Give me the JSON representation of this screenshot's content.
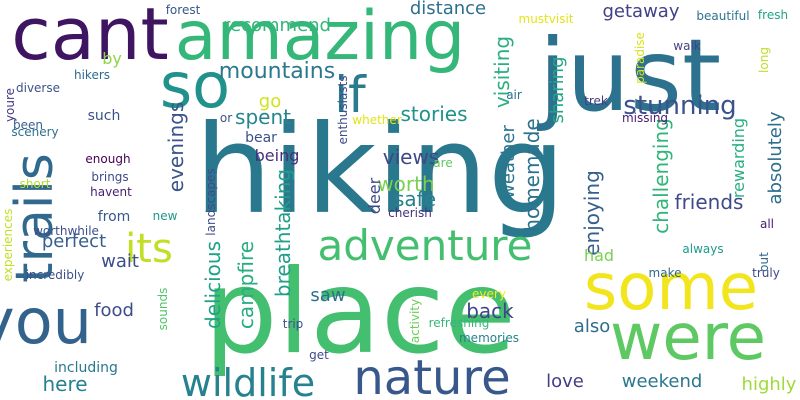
{
  "words": [
    {
      "text": "hiking",
      "color": "#2a788e"
    },
    {
      "text": "place",
      "color": "#44bf70"
    },
    {
      "text": "just",
      "color": "#2c728e"
    },
    {
      "text": "amazing",
      "color": "#35b779"
    },
    {
      "text": "cant",
      "color": "#3f1562"
    },
    {
      "text": "so",
      "color": "#21918c"
    },
    {
      "text": "if",
      "color": "#287c8e"
    },
    {
      "text": "trails",
      "color": "#31688e"
    },
    {
      "text": "some",
      "color": "#f2e51d"
    },
    {
      "text": "were",
      "color": "#5ec962"
    },
    {
      "text": "you",
      "color": "#33638d"
    },
    {
      "text": "nature",
      "color": "#38588c"
    },
    {
      "text": "wildlife",
      "color": "#26828e"
    },
    {
      "text": "adventure",
      "color": "#44bf70"
    },
    {
      "text": "its",
      "color": "#c0df25"
    },
    {
      "text": "stunning",
      "color": "#3b528b"
    },
    {
      "text": "mountains",
      "color": "#2a788e"
    },
    {
      "text": "recommend",
      "color": "#32b67a"
    },
    {
      "text": "getaway",
      "color": "#424086"
    },
    {
      "text": "distance",
      "color": "#2e6f8e"
    },
    {
      "text": "visiting",
      "color": "#29af7f"
    },
    {
      "text": "sharing",
      "color": "#22a785"
    },
    {
      "text": "stories",
      "color": "#21918c"
    },
    {
      "text": "spent",
      "color": "#25858e"
    },
    {
      "text": "go",
      "color": "#d2e21b"
    },
    {
      "text": "evenings",
      "color": "#3a538b"
    },
    {
      "text": "views",
      "color": "#3f4788"
    },
    {
      "text": "worth",
      "color": "#7ad151"
    },
    {
      "text": "safe",
      "color": "#26828e"
    },
    {
      "text": "homemade",
      "color": "#2c718e"
    },
    {
      "text": "weather",
      "color": "#2a768e"
    },
    {
      "text": "enjoying",
      "color": "#355f8d"
    },
    {
      "text": "challenging",
      "color": "#31b57b"
    },
    {
      "text": "absolutely",
      "color": "#2e6e8e"
    },
    {
      "text": "rewarding",
      "color": "#29af7f"
    },
    {
      "text": "friends",
      "color": "#3e4a89"
    },
    {
      "text": "delicious",
      "color": "#1fa287"
    },
    {
      "text": "breathtaking",
      "color": "#1f9e89"
    },
    {
      "text": "campfire",
      "color": "#26ad81"
    },
    {
      "text": "perfect",
      "color": "#355f8d"
    },
    {
      "text": "wait",
      "color": "#3c4f8a"
    },
    {
      "text": "food",
      "color": "#3e4c8a"
    },
    {
      "text": "saw",
      "color": "#2d708e"
    },
    {
      "text": "back",
      "color": "#414487"
    },
    {
      "text": "had",
      "color": "#7ad151"
    },
    {
      "text": "also",
      "color": "#2f6c8e"
    },
    {
      "text": "here",
      "color": "#27808e"
    },
    {
      "text": "love",
      "color": "#433d84"
    },
    {
      "text": "weekend",
      "color": "#2a778e"
    },
    {
      "text": "highly",
      "color": "#a0da39"
    },
    {
      "text": "deer",
      "color": "#3e4989"
    },
    {
      "text": "being",
      "color": "#472d7b"
    },
    {
      "text": "bear",
      "color": "#3c508b"
    },
    {
      "text": "such",
      "color": "#3b528b"
    },
    {
      "text": "by",
      "color": "#8bd646"
    },
    {
      "text": "from",
      "color": "#38598c"
    },
    {
      "text": "including",
      "color": "#2a778e"
    },
    {
      "text": "enough",
      "color": "#440154"
    },
    {
      "text": "brings",
      "color": "#3e4989"
    },
    {
      "text": "havent",
      "color": "#481f70"
    },
    {
      "text": "cherish",
      "color": "#46327e"
    },
    {
      "text": "trek",
      "color": "#443a83"
    },
    {
      "text": "missing",
      "color": "#481c6e"
    },
    {
      "text": "always",
      "color": "#1f9a8a"
    },
    {
      "text": "all",
      "color": "#482071"
    },
    {
      "text": "truly",
      "color": "#3f4889"
    },
    {
      "text": "out",
      "color": "#31688e"
    },
    {
      "text": "make",
      "color": "#31688e"
    },
    {
      "text": "forest",
      "color": "#39568c"
    },
    {
      "text": "beautiful",
      "color": "#2c728e"
    },
    {
      "text": "fresh",
      "color": "#20a486"
    },
    {
      "text": "mustvisit",
      "color": "#e5e419"
    },
    {
      "text": "walk",
      "color": "#404588"
    },
    {
      "text": "paradise",
      "color": "#d8e219"
    },
    {
      "text": "long",
      "color": "#bddf26"
    },
    {
      "text": "air",
      "color": "#2c728e"
    },
    {
      "text": "whether",
      "color": "#e2e418"
    },
    {
      "text": "are",
      "color": "#5ec962"
    },
    {
      "text": "enthusiasts",
      "color": "#3d4e8a"
    },
    {
      "text": "or",
      "color": "#3a548c"
    },
    {
      "text": "landscapes",
      "color": "#3e4a89"
    },
    {
      "text": "new",
      "color": "#1f988b"
    },
    {
      "text": "sounds",
      "color": "#52c569"
    },
    {
      "text": "every",
      "color": "#fde725"
    },
    {
      "text": "refreshing",
      "color": "#35b779"
    },
    {
      "text": "memories",
      "color": "#26828e"
    },
    {
      "text": "activity",
      "color": "#6ccd5a"
    },
    {
      "text": "trip",
      "color": "#3c508b"
    },
    {
      "text": "get",
      "color": "#3e4a89"
    },
    {
      "text": "youre",
      "color": "#453882"
    },
    {
      "text": "hikers",
      "color": "#306a8e"
    },
    {
      "text": "diverse",
      "color": "#3b528b"
    },
    {
      "text": "been",
      "color": "#34608d"
    },
    {
      "text": "scenery",
      "color": "#2d708e"
    },
    {
      "text": "short",
      "color": "#b5de2b"
    },
    {
      "text": "experiences",
      "color": "#c2df23"
    },
    {
      "text": "worthwhile",
      "color": "#3d4d8a"
    },
    {
      "text": "incredibly",
      "color": "#3c508b"
    }
  ]
}
